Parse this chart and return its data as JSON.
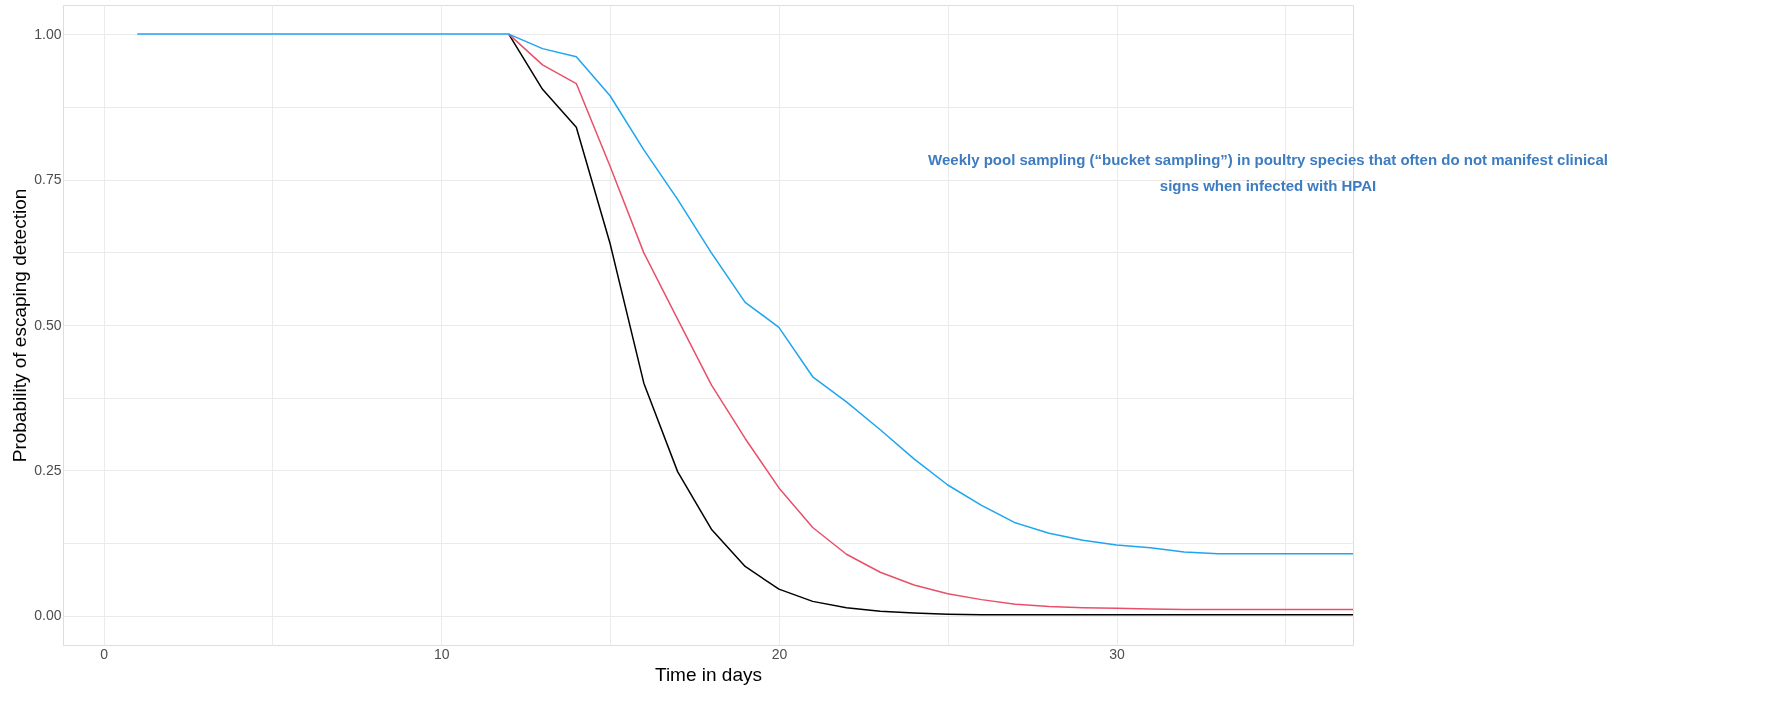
{
  "chart_data": {
    "type": "line",
    "xlabel": "Time in days",
    "ylabel": "Probability of escaping detection",
    "annotations": [
      "Weekly pool sampling (“bucket sampling”) in poultry species that often do not manifest clinical signs when infected with HPAI"
    ],
    "x": [
      1,
      2,
      3,
      4,
      5,
      6,
      7,
      8,
      9,
      10,
      11,
      12,
      13,
      14,
      15,
      16,
      17,
      18,
      19,
      20,
      21,
      22,
      23,
      24,
      25,
      26,
      27,
      28,
      29,
      30,
      31,
      32,
      33,
      34,
      35,
      36,
      37
    ],
    "series": [
      {
        "color": "#000000",
        "values": [
          null,
          null,
          null,
          null,
          null,
          null,
          null,
          null,
          null,
          null,
          null,
          1,
          0.905,
          0.84,
          0.64,
          0.4,
          0.248,
          0.149,
          0.085,
          0.046,
          0.025,
          0.014,
          0.008,
          0.005,
          0.003,
          0.002,
          0.002,
          0.002,
          0.002,
          0.002,
          0.002,
          0.002,
          0.002,
          0.002,
          0.002,
          0.002,
          0.002
        ]
      },
      {
        "color": "#e8506a",
        "values": [
          null,
          null,
          null,
          null,
          null,
          null,
          null,
          null,
          null,
          null,
          null,
          1,
          0.947,
          0.915,
          0.773,
          0.624,
          0.51,
          0.397,
          0.305,
          0.22,
          0.152,
          0.106,
          0.075,
          0.053,
          0.038,
          0.028,
          0.02,
          0.016,
          0.014,
          0.013,
          0.012,
          0.011,
          0.011,
          0.011,
          0.011,
          0.011,
          0.011
        ]
      },
      {
        "color": "#1ea5f0",
        "values": [
          1,
          1,
          1,
          1,
          1,
          1,
          1,
          1,
          1,
          1,
          1,
          1,
          0.975,
          0.961,
          0.894,
          0.801,
          0.716,
          0.624,
          0.539,
          0.496,
          0.411,
          0.368,
          0.32,
          0.27,
          0.225,
          0.19,
          0.16,
          0.142,
          0.13,
          0.122,
          0.117,
          0.11,
          0.107,
          0.107,
          0.107,
          0.107,
          0.107
        ]
      }
    ],
    "xlim": [
      -1.2,
      37
    ],
    "xticks": [
      0,
      {
        "value": 5,
        "label": null
      },
      10,
      {
        "value": 15,
        "label": null
      },
      20,
      {
        "value": 25,
        "label": null
      },
      30,
      {
        "value": 35,
        "label": null
      }
    ],
    "ylim": [
      -0.05,
      1.05
    ],
    "yticks": [
      {
        "value": 0,
        "label": "0.00"
      },
      {
        "value": 0.125,
        "label": null
      },
      {
        "value": 0.25,
        "label": "0.25"
      },
      {
        "value": 0.375,
        "label": null
      },
      {
        "value": 0.5,
        "label": "0.50"
      },
      {
        "value": 0.625,
        "label": null
      },
      {
        "value": 0.75,
        "label": "0.75"
      },
      {
        "value": 0.875,
        "label": null
      },
      {
        "value": 1,
        "label": "1.00"
      }
    ],
    "grid": true,
    "legend": false,
    "line_style": "solid",
    "marker": "none"
  }
}
